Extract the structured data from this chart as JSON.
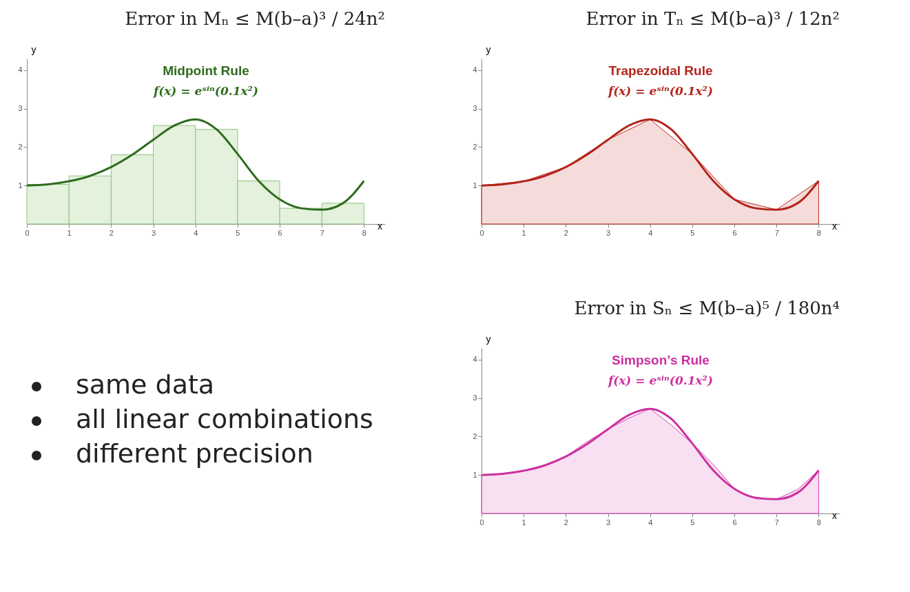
{
  "chart_data": [
    {
      "type": "bar",
      "title": "Midpoint Rule",
      "subtitle": "f(x) = eˢⁱⁿ(0.1x²)",
      "annotations": [
        "Error in Mₙ ≤ M(b–a)³ / 24n²"
      ],
      "xlabel": "x",
      "ylabel": "y",
      "xlim": [
        0,
        8.5
      ],
      "ylim": [
        0,
        4.3
      ],
      "xticks": [
        0,
        1,
        2,
        3,
        4,
        5,
        6,
        7,
        8
      ],
      "yticks": [
        1,
        2,
        3,
        4
      ],
      "series": [
        {
          "type": "bar",
          "color": "#e4f1dd",
          "x": [
            0.5,
            1.5,
            2.5,
            3.5,
            4.5,
            5.5,
            6.5,
            7.5
          ],
          "values": [
            1.03,
            1.25,
            1.8,
            2.56,
            2.46,
            1.12,
            0.41,
            0.54
          ]
        },
        {
          "type": "line",
          "color": "#2e6b1c",
          "x": [
            0,
            0.5,
            1,
            1.5,
            2,
            2.5,
            3,
            3.5,
            4,
            4.5,
            5,
            5.5,
            6,
            6.5,
            7,
            7.5,
            8
          ],
          "values": [
            1,
            1.03,
            1.11,
            1.25,
            1.48,
            1.8,
            2.19,
            2.56,
            2.72,
            2.46,
            1.82,
            1.12,
            0.64,
            0.41,
            0.37,
            0.54,
            1.12
          ]
        }
      ]
    },
    {
      "type": "area",
      "title": "Trapezoidal Rule",
      "subtitle": "f(x) = eˢⁱⁿ(0.1x²)",
      "annotations": [
        "Error in Tₙ ≤ M(b–a)³ / 12n²"
      ],
      "xlabel": "x",
      "ylabel": "y",
      "xlim": [
        0,
        8.5
      ],
      "ylim": [
        0,
        4.3
      ],
      "xticks": [
        0,
        1,
        2,
        3,
        4,
        5,
        6,
        7,
        8
      ],
      "yticks": [
        1,
        2,
        3,
        4
      ],
      "series": [
        {
          "type": "area",
          "color": "#c0281e",
          "x": [
            0,
            1,
            2,
            3,
            4,
            5,
            6,
            7,
            8
          ],
          "values": [
            1,
            1.11,
            1.48,
            2.19,
            2.72,
            1.82,
            0.64,
            0.37,
            1.12
          ]
        },
        {
          "type": "line",
          "color": "#b3241a",
          "x": [
            0,
            0.5,
            1,
            1.5,
            2,
            2.5,
            3,
            3.5,
            4,
            4.5,
            5,
            5.5,
            6,
            6.5,
            7,
            7.5,
            8
          ],
          "values": [
            1,
            1.03,
            1.11,
            1.25,
            1.48,
            1.8,
            2.19,
            2.56,
            2.72,
            2.46,
            1.82,
            1.12,
            0.64,
            0.41,
            0.37,
            0.54,
            1.12
          ]
        }
      ]
    },
    {
      "type": "area",
      "title": "Simpson’s Rule",
      "subtitle": "f(x) = eˢⁱⁿ(0.1x²)",
      "annotations": [
        "Error in Sₙ ≤ M(b–a)⁵ / 180n⁴"
      ],
      "xlabel": "x",
      "ylabel": "y",
      "xlim": [
        0,
        8.5
      ],
      "ylim": [
        0,
        4.3
      ],
      "xticks": [
        0,
        1,
        2,
        3,
        4,
        5,
        6,
        7,
        8
      ],
      "yticks": [
        1,
        2,
        3,
        4
      ],
      "series": [
        {
          "type": "area",
          "color": "#d63fb0",
          "x": [
            0,
            0.5,
            1,
            1.5,
            2,
            2.5,
            3,
            3.5,
            4,
            4.5,
            5,
            5.5,
            6,
            6.5,
            7,
            7.5,
            8
          ],
          "values": [
            1,
            1.02,
            1.11,
            1.26,
            1.48,
            1.86,
            2.19,
            2.48,
            2.72,
            2.3,
            1.82,
            1.27,
            0.64,
            0.38,
            0.37,
            0.62,
            1.12
          ]
        },
        {
          "type": "line",
          "color": "#cc2f9f",
          "x": [
            0,
            0.5,
            1,
            1.5,
            2,
            2.5,
            3,
            3.5,
            4,
            4.5,
            5,
            5.5,
            6,
            6.5,
            7,
            7.5,
            8
          ],
          "values": [
            1,
            1.03,
            1.11,
            1.25,
            1.48,
            1.8,
            2.19,
            2.56,
            2.72,
            2.46,
            1.82,
            1.12,
            0.64,
            0.41,
            0.37,
            0.54,
            1.12
          ]
        }
      ]
    },
    {
      "type": "other",
      "annotations": [
        "same data",
        "all linear combinations",
        "different precision"
      ]
    }
  ]
}
